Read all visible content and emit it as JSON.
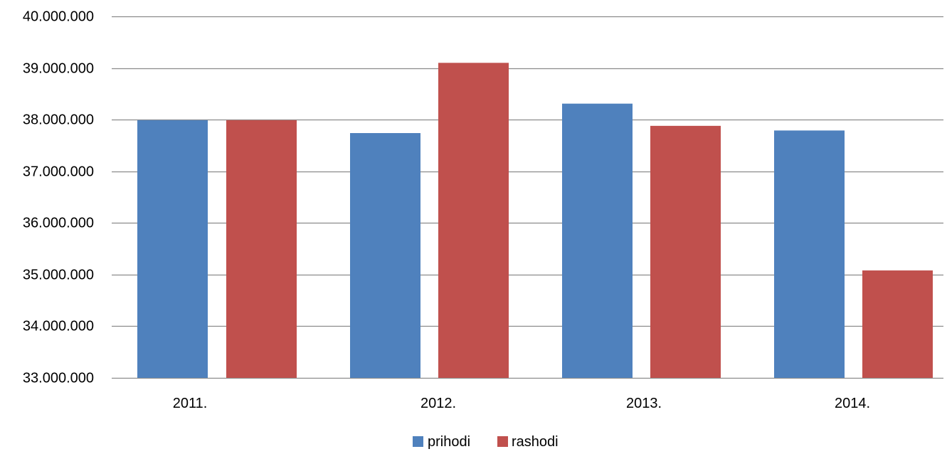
{
  "chart_data": {
    "type": "bar",
    "categories": [
      "2011.",
      "2012.",
      "2013.",
      "2014."
    ],
    "series": [
      {
        "name": "prihodi",
        "color": "#4F81BD",
        "values": [
          37990000,
          37740000,
          38310000,
          37790000
        ]
      },
      {
        "name": "rashodi",
        "color": "#C0504D",
        "values": [
          37990000,
          39100000,
          37880000,
          35080000
        ]
      }
    ],
    "ylim": [
      33000000,
      40000000
    ],
    "ytick_values": [
      33000000,
      34000000,
      35000000,
      36000000,
      37000000,
      38000000,
      39000000,
      40000000
    ],
    "ytick_labels": [
      "33.000.000",
      "34.000.000",
      "35.000.000",
      "36.000.000",
      "37.000.000",
      "38.000.000",
      "39.000.000",
      "40.000.000"
    ],
    "grid": true,
    "legend_position": "bottom",
    "title": "",
    "xlabel": "",
    "ylabel": ""
  }
}
